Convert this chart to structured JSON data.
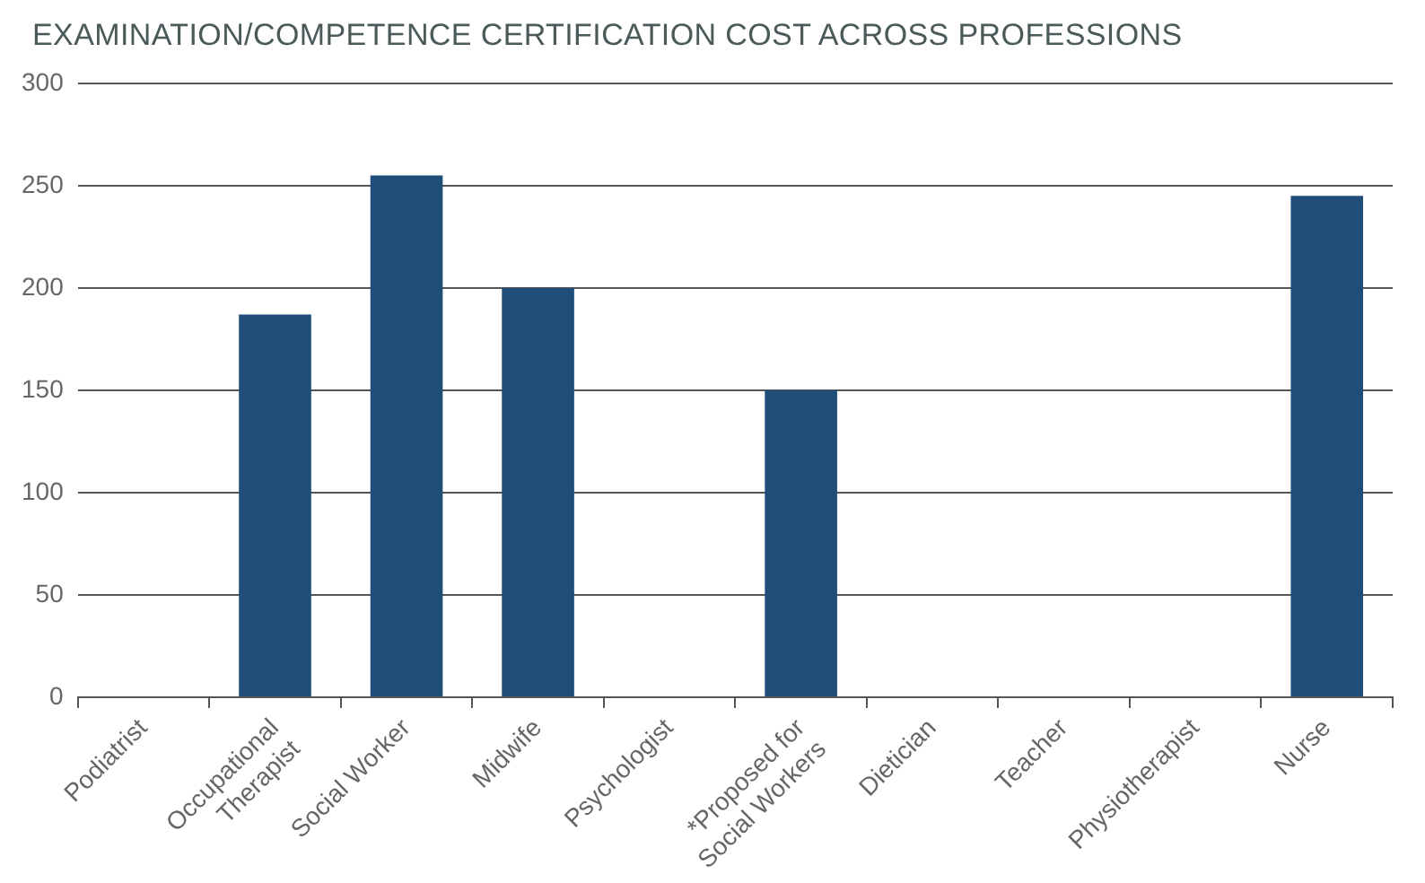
{
  "chart_data": {
    "type": "bar",
    "title": "EXAMINATION/COMPETENCE CERTIFICATION COST ACROSS PROFESSIONS",
    "categories": [
      "Podiatrist",
      "Occupational\nTherapist",
      "Social Worker",
      "Midwife",
      "Psychologist",
      "*Proposed for\nSocial Workers",
      "Dietician",
      "Teacher",
      "Physiotherapist",
      "Nurse"
    ],
    "values": [
      0,
      187,
      255,
      200,
      0,
      150,
      0,
      0,
      0,
      245
    ],
    "color": "#1f4e79",
    "ylim": [
      0,
      300
    ],
    "yticks": [
      0,
      50,
      100,
      150,
      200,
      250,
      300
    ],
    "grid": "y"
  }
}
